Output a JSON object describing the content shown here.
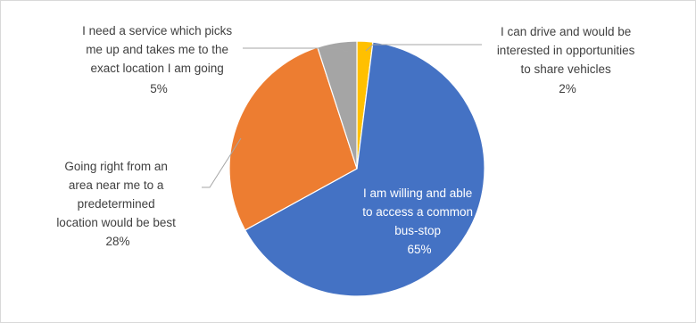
{
  "chart_data": {
    "type": "pie",
    "title": "",
    "slices": [
      {
        "label_lines": [
          "I am willing and able",
          "to access a common",
          "bus-stop"
        ],
        "percent_label": "65%",
        "value": 65,
        "color": "#4472c4"
      },
      {
        "label_lines": [
          "Going right from an",
          "area near me to a",
          "predetermined",
          "location would be best"
        ],
        "percent_label": "28%",
        "value": 28,
        "color": "#ed7d31"
      },
      {
        "label_lines": [
          "I need a service which picks",
          "me up and takes me to the",
          "exact location I am going"
        ],
        "percent_label": "5%",
        "value": 5,
        "color": "#a5a5a5"
      },
      {
        "label_lines": [
          "I can drive and would be",
          "interested in opportunities",
          "to share vehicles"
        ],
        "percent_label": "2%",
        "value": 2,
        "color": "#ffc000"
      }
    ]
  }
}
